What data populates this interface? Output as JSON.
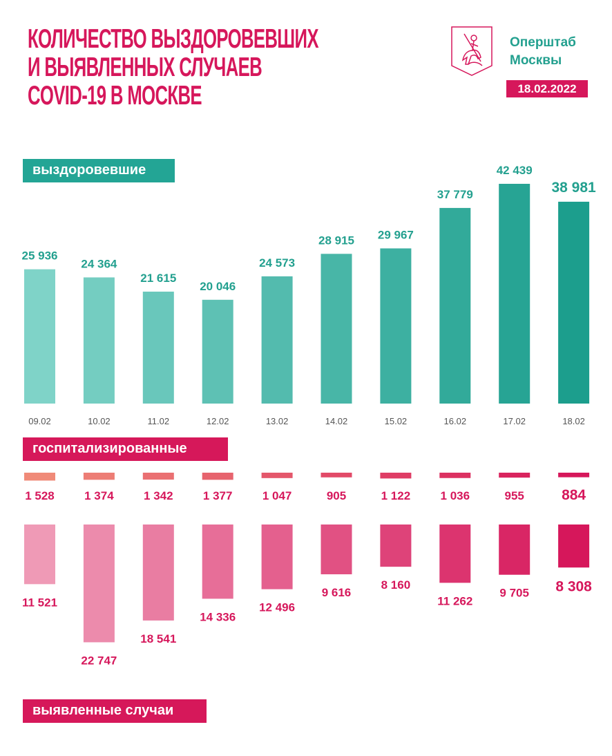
{
  "header": {
    "title_lines": [
      "КОЛИЧЕСТВО ВЫЗДОРОВЕВШИХ",
      "И ВЫЯВЛЕННЫХ СЛУЧАЕВ",
      "COVID-19 В МОСКВЕ"
    ],
    "org_lines": [
      "Оперштаб",
      "Москвы"
    ],
    "date": "18.02.2022",
    "logo_icon": "moscow-coat-of-arms-icon"
  },
  "colors": {
    "title": "#d6175b",
    "recovered_light": "#7fd3c8",
    "recovered_dark": "#1c9e8d",
    "hospital_light": "#f08a78",
    "hospital_dark": "#d6175b",
    "cases_light": "#ef9ab6",
    "cases_dark": "#d6175b"
  },
  "chart_data": {
    "type": "bar",
    "categories": [
      "09.02",
      "10.02",
      "11.02",
      "12.02",
      "13.02",
      "14.02",
      "15.02",
      "16.02",
      "17.02",
      "18.02"
    ],
    "series": [
      {
        "name": "выздоровевшие",
        "values": [
          25936,
          24364,
          21615,
          20046,
          24573,
          28915,
          29967,
          37779,
          42439,
          38981
        ],
        "labels": [
          "25 936",
          "24 364",
          "21 615",
          "20 046",
          "24 573",
          "28 915",
          "29 967",
          "37 779",
          "42 439",
          "38 981"
        ]
      },
      {
        "name": "госпитализированные",
        "values": [
          1528,
          1374,
          1342,
          1377,
          1047,
          905,
          1122,
          1036,
          955,
          884
        ],
        "labels": [
          "1 528",
          "1 374",
          "1 342",
          "1 377",
          "1 047",
          "905",
          "1 122",
          "1 036",
          "955",
          "884"
        ]
      },
      {
        "name": "выявленные случаи",
        "values": [
          11521,
          22747,
          18541,
          14336,
          12496,
          9616,
          8160,
          11262,
          9705,
          8308
        ],
        "labels": [
          "11 521",
          "22 747",
          "18 541",
          "14 336",
          "12 496",
          "9 616",
          "8 160",
          "11 262",
          "9 705",
          "8 308"
        ]
      }
    ],
    "grid": false
  }
}
